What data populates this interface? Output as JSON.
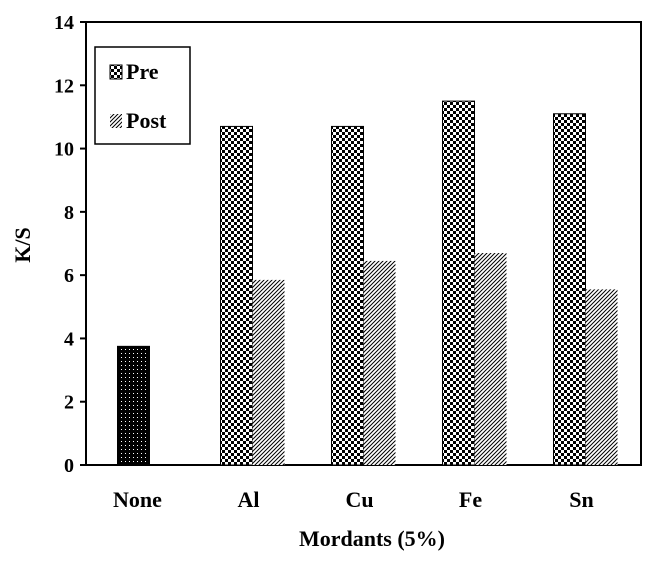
{
  "chart_data": {
    "type": "bar",
    "xlabel": "Mordants (5%)",
    "ylabel": "K/S",
    "categories": [
      "None",
      "Al",
      "Cu",
      "Fe",
      "Sn"
    ],
    "ylim": [
      0,
      14
    ],
    "yticks": [
      "0",
      "2",
      "4",
      "6",
      "8",
      "10",
      "12",
      "14"
    ],
    "grid": false,
    "legend_position": "top-left",
    "series": [
      {
        "name": "Pre",
        "pattern": "checkerboard",
        "values": [
          3.75,
          10.7,
          10.7,
          11.5,
          11.1
        ]
      },
      {
        "name": "Post",
        "pattern": "diagonal-stripes",
        "values": [
          null,
          5.85,
          6.45,
          6.7,
          5.55
        ]
      }
    ],
    "control_bar": {
      "category": "None",
      "pattern": "dotted-black"
    }
  }
}
